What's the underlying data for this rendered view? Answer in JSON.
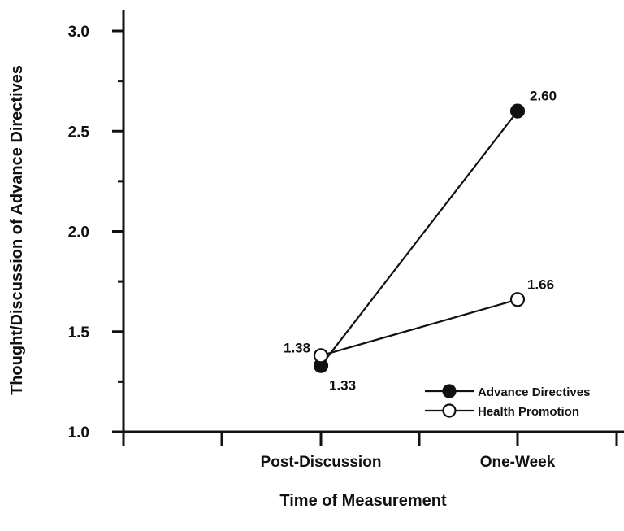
{
  "chart_data": {
    "type": "line",
    "xlabel": "Time of Measurement",
    "ylabel": "Thought/Discussion of Advance Directives",
    "categories": [
      "Post-Discussion",
      "One-Week"
    ],
    "ylim": [
      1.0,
      3.0
    ],
    "y_ticks": [
      "1.0",
      "1.5",
      "2.0",
      "2.5",
      "3.0"
    ],
    "grid": false,
    "legend_position": "bottom-right",
    "series": [
      {
        "name": "Advance Directives",
        "marker": "filled-circle",
        "values": [
          1.33,
          2.6
        ],
        "labels": [
          "1.33",
          "2.60"
        ]
      },
      {
        "name": "Health Promotion",
        "marker": "open-circle",
        "values": [
          1.38,
          1.66
        ],
        "labels": [
          "1.38",
          "1.66"
        ]
      }
    ]
  }
}
